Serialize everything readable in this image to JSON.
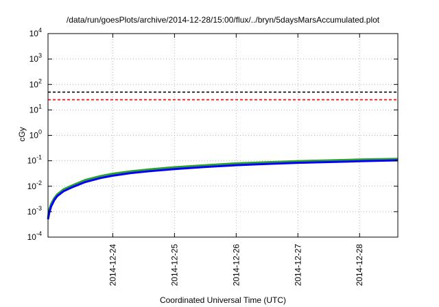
{
  "chart_data": {
    "type": "line",
    "title": "/data/run/goesPlots/archive/2014-12-28/15:00/flux/../bryn/5daysMarsAccumulated.plot",
    "xlabel": "Coordinated Universal Time (UTC)",
    "ylabel": "cGy",
    "yscale": "log",
    "ylim": [
      0.0001,
      10000
    ],
    "xlim_days": [
      -1.05,
      4.62
    ],
    "y_ticks": [
      {
        "value": 0.0001,
        "mantissa": "10",
        "exponent": "-4"
      },
      {
        "value": 0.001,
        "mantissa": "10",
        "exponent": "-3"
      },
      {
        "value": 0.01,
        "mantissa": "10",
        "exponent": "-2"
      },
      {
        "value": 0.1,
        "mantissa": "10",
        "exponent": "-1"
      },
      {
        "value": 1,
        "mantissa": "10",
        "exponent": "0"
      },
      {
        "value": 10,
        "mantissa": "10",
        "exponent": "1"
      },
      {
        "value": 100,
        "mantissa": "10",
        "exponent": "2"
      },
      {
        "value": 1000,
        "mantissa": "10",
        "exponent": "3"
      },
      {
        "value": 10000,
        "mantissa": "10",
        "exponent": "4"
      }
    ],
    "x_ticks": [
      {
        "value": 0,
        "label": "2014-12-24"
      },
      {
        "value": 1,
        "label": "2014-12-25"
      },
      {
        "value": 2,
        "label": "2014-12-26"
      },
      {
        "value": 3,
        "label": "2014-12-27"
      },
      {
        "value": 4,
        "label": "2014-12-28"
      }
    ],
    "grid": true,
    "reference_lines": [
      {
        "y": 50,
        "color": "#000000",
        "style": "dashed"
      },
      {
        "y": 25,
        "color": "#ff0000",
        "style": "dashed"
      }
    ],
    "series": [
      {
        "color": "#2ca02c",
        "x": [
          -1.05,
          -1.03,
          -1.0,
          -0.95,
          -0.9,
          -0.8,
          -0.65,
          -0.45,
          -0.2,
          0.0,
          0.3,
          0.6,
          1.0,
          1.5,
          2.0,
          2.5,
          3.0,
          3.5,
          4.0,
          4.62
        ],
        "y": [
          0.0006,
          0.0012,
          0.002,
          0.0034,
          0.0048,
          0.0075,
          0.011,
          0.0175,
          0.025,
          0.031,
          0.039,
          0.046,
          0.056,
          0.067,
          0.079,
          0.088,
          0.097,
          0.104,
          0.112,
          0.12
        ]
      },
      {
        "color": "#0000ff",
        "x": [
          -1.05,
          -1.03,
          -1.0,
          -0.95,
          -0.9,
          -0.8,
          -0.65,
          -0.45,
          -0.2,
          0.0,
          0.3,
          0.6,
          1.0,
          1.5,
          2.0,
          2.5,
          3.0,
          3.5,
          4.0,
          4.62
        ],
        "y": [
          0.0005,
          0.0009,
          0.0016,
          0.0028,
          0.0041,
          0.0063,
          0.0093,
          0.0145,
          0.021,
          0.026,
          0.033,
          0.039,
          0.047,
          0.057,
          0.067,
          0.075,
          0.083,
          0.089,
          0.096,
          0.104
        ]
      }
    ]
  }
}
